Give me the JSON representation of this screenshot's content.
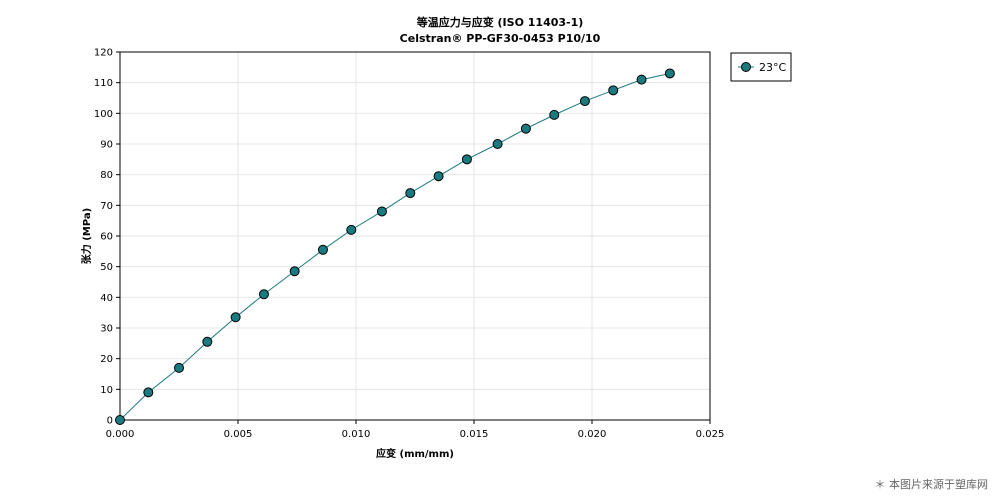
{
  "chart_data": {
    "type": "line",
    "title": "等温应力与应变 (ISO 11403-1)",
    "subtitle": "Celstran® PP-GF30-0453 P10/10",
    "xlabel": "应变 (mm/mm)",
    "ylabel": "张力 (MPa)",
    "xlim": [
      0,
      0.025
    ],
    "ylim": [
      0,
      120
    ],
    "x_ticks": [
      "0.000",
      "0.005",
      "0.010",
      "0.015",
      "0.020",
      "0.025"
    ],
    "y_ticks": [
      "0",
      "10",
      "20",
      "30",
      "40",
      "50",
      "60",
      "70",
      "80",
      "90",
      "100",
      "110",
      "120"
    ],
    "grid": true,
    "legend_position": "top-right-outside",
    "series": [
      {
        "name": "23°C",
        "color": "#1a7a80",
        "x": [
          0,
          0.0012,
          0.0025,
          0.0037,
          0.0049,
          0.0061,
          0.0074,
          0.0086,
          0.0098,
          0.0111,
          0.0123,
          0.0135,
          0.0147,
          0.016,
          0.0172,
          0.0184,
          0.0197,
          0.0209,
          0.0221,
          0.0233
        ],
        "y": [
          0,
          9,
          17,
          25.5,
          33.5,
          41,
          48.5,
          55.5,
          62,
          68,
          74,
          79.5,
          85,
          90,
          95,
          99.5,
          104,
          107.5,
          111,
          113
        ]
      }
    ]
  },
  "watermark": "＊ 本图片来源于塑库网"
}
